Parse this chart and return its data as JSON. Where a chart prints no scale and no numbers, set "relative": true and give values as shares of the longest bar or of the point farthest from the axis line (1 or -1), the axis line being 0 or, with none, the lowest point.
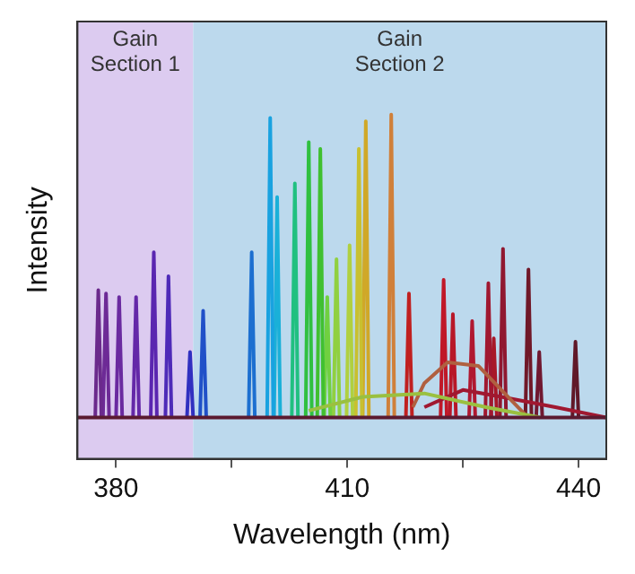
{
  "chart_data": {
    "type": "line",
    "relative": true,
    "xlabel": "Wavelength (nm)",
    "ylabel": "Intensity",
    "xlim": [
      375,
      443.6
    ],
    "xticks": [
      380,
      {
        "value": 395,
        "label": null
      },
      410,
      {
        "value": 425,
        "label": null
      },
      440
    ],
    "legend": false,
    "marker": "none",
    "line_style": "solid",
    "bands": [
      {
        "axis": "x",
        "from": 375,
        "to": 390,
        "label": "Gain Section 1",
        "color": "#dccbf0"
      },
      {
        "axis": "x",
        "from": 390,
        "to": 443.6,
        "label": "Gain Section 2",
        "color": "#bcd9ed"
      }
    ],
    "series": [
      {
        "color": "#5a1a30",
        "x": [
          375,
          443.6
        ],
        "values": [
          0.12,
          0.12
        ]
      },
      {
        "color": "#9ac040",
        "x": [
          405,
          412,
          420,
          428,
          435
        ],
        "values": [
          0.14,
          0.18,
          0.19,
          0.15,
          0.12
        ]
      },
      {
        "color": "#b06040",
        "x": [
          418.5,
          420,
          423,
          427,
          430,
          433
        ],
        "values": [
          0.15,
          0.22,
          0.28,
          0.27,
          0.2,
          0.13
        ]
      },
      {
        "color": "#a01830",
        "x": [
          420,
          425,
          430,
          437,
          443.6
        ],
        "values": [
          0.15,
          0.2,
          0.18,
          0.15,
          0.12
        ]
      },
      {
        "color": "#6b2a8c",
        "x": [
          377.3,
          377.7,
          378.1
        ],
        "values": [
          0.12,
          0.49,
          0.12
        ]
      },
      {
        "color": "#6d2a96",
        "x": [
          378.3,
          378.7,
          379.1
        ],
        "values": [
          0.12,
          0.48,
          0.12
        ]
      },
      {
        "color": "#6a2aa0",
        "x": [
          380,
          380.4,
          380.8
        ],
        "values": [
          0.12,
          0.47,
          0.12
        ]
      },
      {
        "color": "#6428a8",
        "x": [
          382.2,
          382.6,
          383
        ],
        "values": [
          0.12,
          0.47,
          0.12
        ]
      },
      {
        "color": "#5a26b0",
        "x": [
          384.5,
          384.9,
          385.3
        ],
        "values": [
          0.12,
          0.6,
          0.12
        ]
      },
      {
        "color": "#4e2ab8",
        "x": [
          386.4,
          386.8,
          387.2
        ],
        "values": [
          0.12,
          0.53,
          0.12
        ]
      },
      {
        "color": "#3030c0",
        "x": [
          389.2,
          389.6,
          390
        ],
        "values": [
          0.12,
          0.31,
          0.12
        ]
      },
      {
        "color": "#2050c8",
        "x": [
          390.9,
          391.3,
          391.7
        ],
        "values": [
          0.12,
          0.43,
          0.12
        ]
      },
      {
        "color": "#1c6fd0",
        "x": [
          397.2,
          397.6,
          398
        ],
        "values": [
          0.12,
          0.6,
          0.12
        ]
      },
      {
        "color": "#19a2e0",
        "x": [
          399.6,
          400,
          400.4
        ],
        "values": [
          0.12,
          0.99,
          0.12
        ]
      },
      {
        "color": "#1ab0d8",
        "x": [
          400.5,
          400.9,
          401.3
        ],
        "values": [
          0.12,
          0.76,
          0.12
        ]
      },
      {
        "color": "#20c080",
        "x": [
          402.8,
          403.2,
          403.6
        ],
        "values": [
          0.12,
          0.8,
          0.12
        ]
      },
      {
        "color": "#30c040",
        "x": [
          404.6,
          405,
          405.4
        ],
        "values": [
          0.12,
          0.92,
          0.12
        ]
      },
      {
        "color": "#40c030",
        "x": [
          406.1,
          406.5,
          406.9
        ],
        "values": [
          0.12,
          0.9,
          0.12
        ]
      },
      {
        "color": "#70d040",
        "x": [
          407,
          407.4,
          407.8
        ],
        "values": [
          0.12,
          0.47,
          0.12
        ]
      },
      {
        "color": "#90d040",
        "x": [
          408.2,
          408.6,
          409
        ],
        "values": [
          0.12,
          0.58,
          0.12
        ]
      },
      {
        "color": "#b0d040",
        "x": [
          409.9,
          410.3,
          410.7
        ],
        "values": [
          0.12,
          0.62,
          0.12
        ]
      },
      {
        "color": "#c8c030",
        "x": [
          411.1,
          411.5,
          411.9
        ],
        "values": [
          0.12,
          0.9,
          0.12
        ]
      },
      {
        "color": "#d0a828",
        "x": [
          412,
          412.4,
          412.8
        ],
        "values": [
          0.12,
          0.98,
          0.12
        ]
      },
      {
        "color": "#d0803a",
        "x": [
          415.3,
          415.7,
          416.1
        ],
        "values": [
          0.12,
          1,
          0.12
        ]
      },
      {
        "color": "#c02020",
        "x": [
          417.6,
          418,
          418.4
        ],
        "values": [
          0.12,
          0.48,
          0.12
        ]
      },
      {
        "color": "#c01828",
        "x": [
          422.1,
          422.5,
          422.9
        ],
        "values": [
          0.12,
          0.52,
          0.12
        ]
      },
      {
        "color": "#b81828",
        "x": [
          423.3,
          423.7,
          424.1
        ],
        "values": [
          0.12,
          0.42,
          0.12
        ]
      },
      {
        "color": "#b01830",
        "x": [
          425.8,
          426.2,
          426.6
        ],
        "values": [
          0.12,
          0.4,
          0.12
        ]
      },
      {
        "color": "#a01830",
        "x": [
          427.9,
          428.3,
          428.7
        ],
        "values": [
          0.12,
          0.51,
          0.12
        ]
      },
      {
        "color": "#a81828",
        "x": [
          428.6,
          429,
          429.4
        ],
        "values": [
          0.12,
          0.35,
          0.12
        ]
      },
      {
        "color": "#901830",
        "x": [
          429.8,
          430.2,
          430.6
        ],
        "values": [
          0.12,
          0.61,
          0.12
        ]
      },
      {
        "color": "#701828",
        "x": [
          433.1,
          433.5,
          433.9
        ],
        "values": [
          0.12,
          0.55,
          0.12
        ]
      },
      {
        "color": "#701830",
        "x": [
          434.5,
          434.9,
          435.3
        ],
        "values": [
          0.12,
          0.31,
          0.12
        ]
      },
      {
        "color": "#601828",
        "x": [
          439.2,
          439.6,
          440
        ],
        "values": [
          0.12,
          0.34,
          0.12
        ]
      }
    ]
  }
}
